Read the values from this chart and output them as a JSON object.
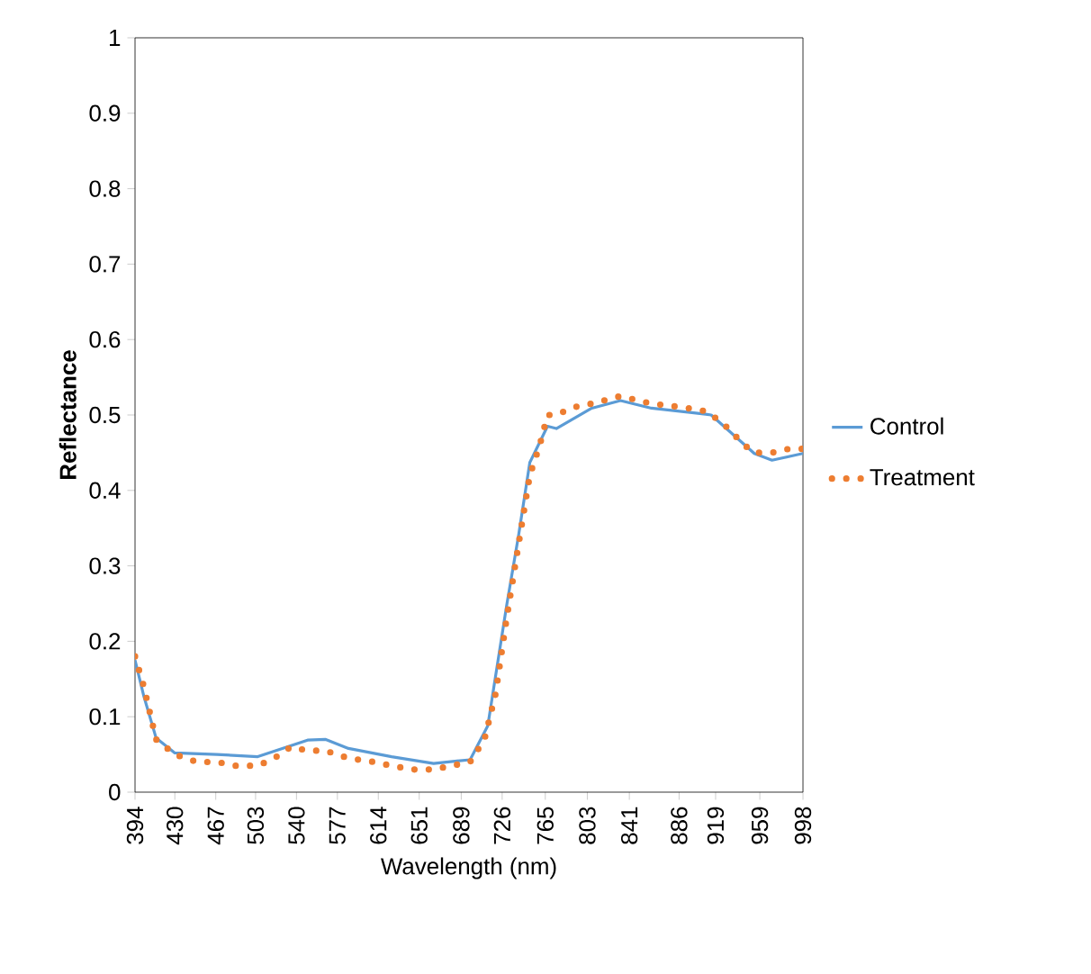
{
  "chart_data": {
    "type": "line",
    "xlabel": "Wavelength (nm)",
    "ylabel": "Reflectance",
    "xlim": [
      394,
      998
    ],
    "xticks": [
      394,
      430,
      467,
      503,
      540,
      577,
      614,
      651,
      689,
      726,
      765,
      803,
      841,
      886,
      919,
      959,
      998
    ],
    "ylim": [
      0,
      1
    ],
    "yticks": [
      0,
      0.1,
      0.2,
      0.3,
      0.4,
      0.5,
      0.6,
      0.7,
      0.8,
      0.9,
      1
    ],
    "grid": false,
    "legend": "right",
    "marker": "none",
    "series": [
      {
        "name": "Control",
        "color": "#5b9bd5",
        "line_style": "solid",
        "x": [
          394,
          402,
          413,
          430,
          468,
          505,
          550,
          566,
          587,
          626,
          664,
          697,
          713,
          730,
          741,
          751,
          767,
          775,
          807,
          833,
          861,
          910,
          915,
          954,
          970,
          998
        ],
        "values": [
          0.175,
          0.127,
          0.072,
          0.052,
          0.05,
          0.047,
          0.069,
          0.07,
          0.058,
          0.047,
          0.038,
          0.043,
          0.088,
          0.247,
          0.342,
          0.437,
          0.485,
          0.482,
          0.509,
          0.519,
          0.509,
          0.501,
          0.5,
          0.449,
          0.44,
          0.449
        ]
      },
      {
        "name": "Treatment",
        "color": "#ed7d31",
        "line_style": "dotted",
        "x": [
          394,
          402,
          413,
          430,
          450,
          468,
          485,
          505,
          520,
          535,
          550,
          566,
          587,
          610,
          626,
          645,
          664,
          680,
          697,
          710,
          720,
          730,
          741,
          751,
          760,
          767,
          775,
          790,
          807,
          833,
          861,
          890,
          910,
          925,
          945,
          954,
          970,
          985,
          998
        ],
        "values": [
          0.18,
          0.14,
          0.07,
          0.05,
          0.04,
          0.04,
          0.035,
          0.035,
          0.045,
          0.06,
          0.055,
          0.055,
          0.045,
          0.04,
          0.035,
          0.03,
          0.03,
          0.035,
          0.04,
          0.07,
          0.13,
          0.23,
          0.33,
          0.42,
          0.46,
          0.5,
          0.5,
          0.51,
          0.515,
          0.525,
          0.515,
          0.51,
          0.505,
          0.49,
          0.46,
          0.45,
          0.45,
          0.455,
          0.455
        ]
      }
    ]
  }
}
